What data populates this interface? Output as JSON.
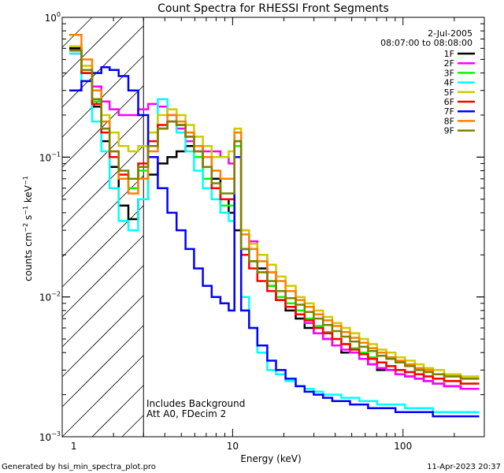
{
  "chart_data": {
    "type": "line",
    "title": "Count Spectra for RHESSI Front Segments",
    "xlabel": "Energy (keV)",
    "ylabel": "counts cm^-2 s^-1 keV^-1",
    "ylabel_parts": {
      "base": "counts cm",
      "exp1": "−2",
      "mid1": " s",
      "exp2": "−1",
      "mid2": " keV",
      "exp3": "−1"
    },
    "xscale": "log",
    "yscale": "log",
    "xlim": [
      1,
      300
    ],
    "ylim": [
      0.001,
      1
    ],
    "xticks": [
      {
        "value": 10,
        "label": "10"
      },
      {
        "value": 100,
        "label": "100"
      }
    ],
    "xtick_first": "1",
    "yticks": [
      {
        "value": 1,
        "base": "10",
        "exp": "0"
      },
      {
        "value": 0.1,
        "base": "10",
        "exp": "−1"
      },
      {
        "value": 0.01,
        "base": "10",
        "exp": "−2"
      },
      {
        "value": 0.001,
        "base": "10",
        "exp": "−3"
      }
    ],
    "date": "2-Jul-2005",
    "time_range": "08:07:00 to 08:08:00",
    "hatched_region_kev": [
      1,
      3
    ],
    "annotation_lines": [
      "Includes Background",
      "Att A0, FDecim 2"
    ],
    "series": [
      {
        "name": "1F",
        "color": "#000000",
        "values": [
          0.6,
          0.4,
          0.23,
          0.13,
          0.085,
          0.045,
          0.036,
          0.05,
          0.075,
          0.09,
          0.1,
          0.11,
          0.12,
          0.12,
          0.1,
          0.07,
          0.05,
          0.04,
          0.03,
          0.022,
          0.018,
          0.016,
          0.012,
          0.0095,
          0.008,
          0.007,
          0.006,
          0.0055,
          0.005,
          0.0045,
          0.004,
          0.004,
          0.0036,
          0.0033,
          0.003,
          0.003,
          0.0028,
          0.0027,
          0.0026,
          0.0025,
          0.0024,
          0.0023,
          0.0022
        ]
      },
      {
        "name": "2F",
        "color": "#ff00ff",
        "values": [
          0.55,
          0.42,
          0.32,
          0.25,
          0.22,
          0.2,
          0.2,
          0.22,
          0.24,
          0.23,
          0.2,
          0.16,
          0.13,
          0.12,
          0.11,
          0.11,
          0.1,
          0.09,
          0.12,
          0.03,
          0.025,
          0.02,
          0.015,
          0.011,
          0.009,
          0.0075,
          0.0065,
          0.0055,
          0.005,
          0.0045,
          0.0042,
          0.004,
          0.0036,
          0.0033,
          0.0031,
          0.003,
          0.0028,
          0.0027,
          0.0026,
          0.0025,
          0.0024,
          0.0023,
          0.0022
        ]
      },
      {
        "name": "3F",
        "color": "#00ff00",
        "values": [
          0.58,
          0.4,
          0.25,
          0.16,
          0.1,
          0.07,
          0.06,
          0.08,
          0.12,
          0.16,
          0.18,
          0.17,
          0.14,
          0.1,
          0.07,
          0.05,
          0.045,
          0.045,
          0.12,
          0.022,
          0.018,
          0.015,
          0.012,
          0.01,
          0.009,
          0.008,
          0.007,
          0.0062,
          0.0056,
          0.005,
          0.0046,
          0.0043,
          0.004,
          0.0037,
          0.0034,
          0.0032,
          0.003,
          0.0029,
          0.0028,
          0.0027,
          0.0026,
          0.0025,
          0.0024
        ]
      },
      {
        "name": "4F",
        "color": "#00ffff",
        "values": [
          0.55,
          0.35,
          0.18,
          0.11,
          0.06,
          0.035,
          0.03,
          0.05,
          0.12,
          0.26,
          0.2,
          0.15,
          0.11,
          0.08,
          0.06,
          0.05,
          0.04,
          0.035,
          0.1,
          0.01,
          0.006,
          0.004,
          0.003,
          0.0028,
          0.0025,
          0.0023,
          0.0022,
          0.0021,
          0.002,
          0.002,
          0.0019,
          0.0019,
          0.0018,
          0.0018,
          0.0017,
          0.0017,
          0.0017,
          0.0016,
          0.0016,
          0.0016,
          0.0015,
          0.0015,
          0.0015
        ]
      },
      {
        "name": "5F",
        "color": "#cccc00",
        "values": [
          0.62,
          0.45,
          0.3,
          0.2,
          0.15,
          0.12,
          0.11,
          0.12,
          0.15,
          0.2,
          0.22,
          0.2,
          0.17,
          0.14,
          0.12,
          0.1,
          0.1,
          0.11,
          0.16,
          0.03,
          0.024,
          0.02,
          0.017,
          0.014,
          0.012,
          0.01,
          0.009,
          0.008,
          0.0072,
          0.0065,
          0.006,
          0.0055,
          0.005,
          0.0046,
          0.0042,
          0.004,
          0.0037,
          0.0035,
          0.0033,
          0.0031,
          0.003,
          0.0028,
          0.0027
        ]
      },
      {
        "name": "6F",
        "color": "#ff0000",
        "values": [
          0.58,
          0.4,
          0.24,
          0.15,
          0.1,
          0.075,
          0.07,
          0.09,
          0.13,
          0.17,
          0.18,
          0.17,
          0.14,
          0.11,
          0.085,
          0.06,
          0.05,
          0.05,
          0.13,
          0.02,
          0.016,
          0.013,
          0.011,
          0.0095,
          0.0085,
          0.0075,
          0.0068,
          0.006,
          0.0055,
          0.005,
          0.0046,
          0.0042,
          0.0039,
          0.0036,
          0.0034,
          0.0032,
          0.003,
          0.0029,
          0.0028,
          0.0027,
          0.0026,
          0.0025,
          0.0024
        ]
      },
      {
        "name": "7F",
        "color": "#0000ff",
        "values": [
          0.3,
          0.35,
          0.4,
          0.44,
          0.42,
          0.38,
          0.3,
          0.2,
          0.1,
          0.06,
          0.04,
          0.03,
          0.022,
          0.016,
          0.012,
          0.01,
          0.009,
          0.008,
          0.1,
          0.008,
          0.006,
          0.0045,
          0.0035,
          0.003,
          0.0026,
          0.0023,
          0.0021,
          0.002,
          0.0019,
          0.0018,
          0.0018,
          0.0017,
          0.0017,
          0.0016,
          0.0016,
          0.0016,
          0.0015,
          0.0015,
          0.0015,
          0.0015,
          0.0014,
          0.0014,
          0.0014
        ]
      },
      {
        "name": "8F",
        "color": "#ff8000",
        "values": [
          0.75,
          0.5,
          0.3,
          0.18,
          0.11,
          0.07,
          0.055,
          0.07,
          0.11,
          0.16,
          0.2,
          0.18,
          0.15,
          0.12,
          0.1,
          0.08,
          0.07,
          0.07,
          0.15,
          0.028,
          0.022,
          0.018,
          0.015,
          0.013,
          0.011,
          0.0095,
          0.0085,
          0.0075,
          0.0068,
          0.0062,
          0.0056,
          0.0051,
          0.0047,
          0.0043,
          0.004,
          0.0037,
          0.0035,
          0.0033,
          0.0031,
          0.003,
          0.0028,
          0.0027,
          0.0026
        ]
      },
      {
        "name": "9F",
        "color": "#808000",
        "values": [
          0.58,
          0.42,
          0.26,
          0.16,
          0.11,
          0.08,
          0.07,
          0.085,
          0.12,
          0.16,
          0.18,
          0.17,
          0.14,
          0.11,
          0.085,
          0.065,
          0.055,
          0.055,
          0.13,
          0.022,
          0.018,
          0.015,
          0.013,
          0.011,
          0.0098,
          0.0088,
          0.0078,
          0.007,
          0.0063,
          0.0057,
          0.0052,
          0.0048,
          0.0044,
          0.0041,
          0.0038,
          0.0036,
          0.0034,
          0.0032,
          0.003,
          0.0029,
          0.0028,
          0.0027,
          0.0026
        ]
      }
    ],
    "energy_bins_kev": [
      1.2,
      1.4,
      1.6,
      1.8,
      2.0,
      2.3,
      2.6,
      3.0,
      3.4,
      3.9,
      4.4,
      5.0,
      5.6,
      6.3,
      7.1,
      8.0,
      9.0,
      10.0,
      10.5,
      12.0,
      13.0,
      15.0,
      17.0,
      19.0,
      22.0,
      25.0,
      28.0,
      32.0,
      36.0,
      41.0,
      46.0,
      52.0,
      59.0,
      66.0,
      75.0,
      85.0,
      96.0,
      110.0,
      125.0,
      140.0,
      160.0,
      190.0,
      250.0
    ]
  },
  "footer": {
    "left": "Generated by hsi_min_spectra_plot.pro",
    "right": "11-Apr-2023 20:37"
  }
}
